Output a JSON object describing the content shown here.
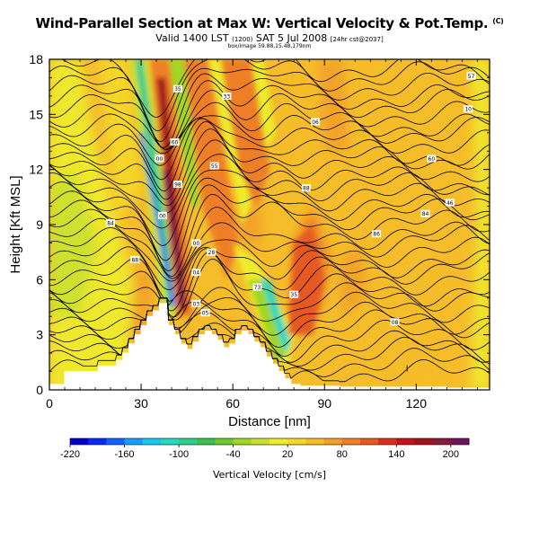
{
  "header": {
    "title": "Wind-Parallel Section at Max W: Vertical Velocity & Pot.Temp.",
    "title_mark": "(C)",
    "valid_line": "Valid 1400 LST",
    "valid_paren": "(1200)",
    "valid_date": "SAT 5 Jul 2008",
    "valid_run": "[24hr cst@2037]",
    "info_line": "box/image 59.88,15.48,179nm"
  },
  "chart_data": {
    "type": "heatmap",
    "title": "Wind-Parallel Section at Max W: Vertical Velocity & Pot.Temp.",
    "xlabel": "Distance [nm]",
    "ylabel": "Height [Kft MSL]",
    "xlim": [
      0,
      144
    ],
    "ylim": [
      0,
      18
    ],
    "xticks": [
      0,
      30,
      60,
      90,
      120
    ],
    "xtick_labels": [
      "0",
      "30",
      "60",
      "90",
      "120"
    ],
    "yticks": [
      0,
      3,
      6,
      9,
      12,
      15,
      18
    ],
    "ytick_labels": [
      "0",
      "3",
      "6",
      "9",
      "12",
      "15",
      "18"
    ],
    "grid": false,
    "colorbar": {
      "label": "Vertical Velocity [cm/s]",
      "min": -220,
      "max": 220,
      "tick_values": [
        -220,
        -160,
        -100,
        -40,
        20,
        80,
        140,
        200
      ],
      "tick_labels": [
        "-220",
        "-160",
        "-100",
        "-40",
        "20",
        "80",
        "140",
        "200"
      ],
      "colors": [
        "#0000c8",
        "#0a28f5",
        "#1262ff",
        "#1a9bff",
        "#18c8ee",
        "#28d8c0",
        "#30cc8c",
        "#3cc050",
        "#70c830",
        "#a0d628",
        "#cce030",
        "#eeec2c",
        "#f6d82a",
        "#f6bd2a",
        "#f3a028",
        "#ee7f26",
        "#e65a22",
        "#d8301c",
        "#c01418",
        "#a2121e",
        "#861a3c",
        "#70145a"
      ]
    },
    "terrain": {
      "x": [
        0,
        5,
        5,
        16,
        16,
        22,
        22,
        24,
        24,
        26,
        26,
        28,
        28,
        30,
        30,
        32,
        32,
        34,
        34,
        36,
        36,
        39,
        39,
        41,
        41,
        43,
        43,
        45,
        45,
        47,
        47,
        49,
        49,
        51,
        51,
        53,
        53,
        55,
        55,
        57,
        57,
        59,
        59,
        61,
        61,
        63,
        63,
        65,
        65,
        67,
        67,
        69,
        69,
        71,
        71,
        73,
        73,
        75,
        75,
        77,
        77,
        79,
        79,
        82,
        82,
        95,
        95,
        130,
        130,
        144
      ],
      "y": [
        0.3,
        0.3,
        1.0,
        1.0,
        1.3,
        1.3,
        1.6,
        1.6,
        2.0,
        2.0,
        2.5,
        2.5,
        3.0,
        3.0,
        3.5,
        3.5,
        4.0,
        4.0,
        4.3,
        4.3,
        4.7,
        4.7,
        3.5,
        3.5,
        3.0,
        3.0,
        2.5,
        2.5,
        2.2,
        2.2,
        2.6,
        2.6,
        3.0,
        3.0,
        3.2,
        3.2,
        3.0,
        3.0,
        2.7,
        2.7,
        2.3,
        2.3,
        2.5,
        2.5,
        3.0,
        3.0,
        3.2,
        3.2,
        3.0,
        3.0,
        2.6,
        2.6,
        2.3,
        2.3,
        1.8,
        1.8,
        1.4,
        1.4,
        1.0,
        1.0,
        0.6,
        0.6,
        0.3,
        0.3,
        0.2,
        0.2,
        0.15,
        0.15,
        0.1,
        0.1
      ]
    },
    "isentrope_labels": [
      {
        "x": 138,
        "y": 17.1,
        "text": "57"
      },
      {
        "x": 42,
        "y": 16.4,
        "text": "35"
      },
      {
        "x": 58,
        "y": 16.0,
        "text": "33"
      },
      {
        "x": 137,
        "y": 15.3,
        "text": "10"
      },
      {
        "x": 87,
        "y": 14.6,
        "text": "06"
      },
      {
        "x": 41,
        "y": 13.5,
        "text": "60"
      },
      {
        "x": 36,
        "y": 12.6,
        "text": "00"
      },
      {
        "x": 54,
        "y": 12.2,
        "text": "55"
      },
      {
        "x": 125,
        "y": 12.6,
        "text": "60"
      },
      {
        "x": 42,
        "y": 11.2,
        "text": "98"
      },
      {
        "x": 84,
        "y": 11.0,
        "text": "88"
      },
      {
        "x": 131,
        "y": 10.2,
        "text": "46"
      },
      {
        "x": 37,
        "y": 9.5,
        "text": "00"
      },
      {
        "x": 20,
        "y": 9.1,
        "text": "84"
      },
      {
        "x": 123,
        "y": 9.6,
        "text": "84"
      },
      {
        "x": 107,
        "y": 8.5,
        "text": "86"
      },
      {
        "x": 48,
        "y": 8.0,
        "text": "00"
      },
      {
        "x": 53,
        "y": 7.5,
        "text": "28"
      },
      {
        "x": 28,
        "y": 7.1,
        "text": "88"
      },
      {
        "x": 48,
        "y": 6.4,
        "text": "04"
      },
      {
        "x": 68,
        "y": 5.6,
        "text": "73"
      },
      {
        "x": 80,
        "y": 5.2,
        "text": "35"
      },
      {
        "x": 48,
        "y": 4.7,
        "text": "03"
      },
      {
        "x": 51,
        "y": 4.2,
        "text": "05"
      },
      {
        "x": 113,
        "y": 3.7,
        "text": "08"
      }
    ],
    "min_marker": {
      "x": 117,
      "y": 1.0,
      "text": "l"
    }
  }
}
